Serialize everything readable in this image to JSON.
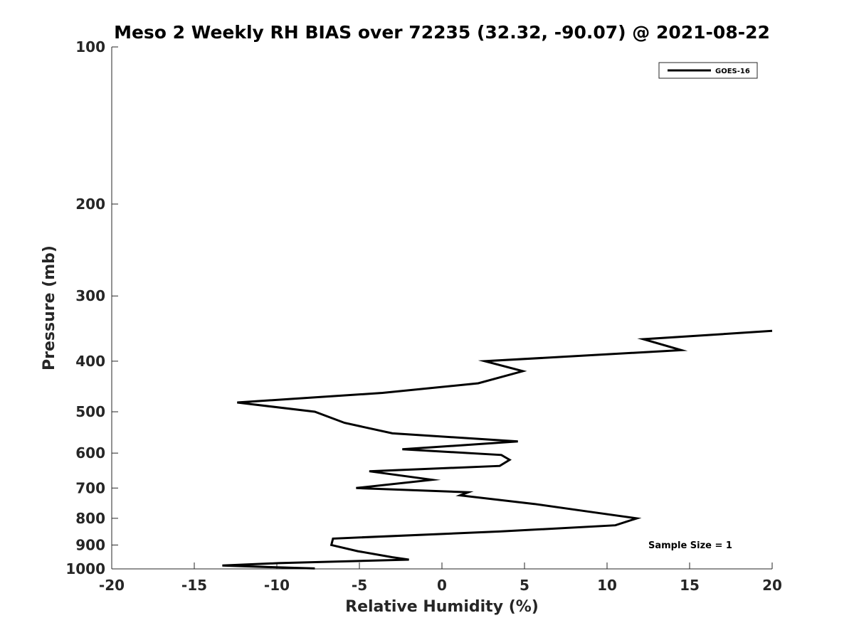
{
  "chart_data": {
    "type": "line",
    "title": "Meso 2 Weekly RH BIAS over 72235 (32.32, -90.07) @ 2021-08-22",
    "xlabel": "Relative Humidity (%)",
    "ylabel": "Pressure (mb)",
    "xlim": [
      -20,
      20
    ],
    "ylim": [
      100,
      1000
    ],
    "y_scale": "log",
    "y_reversed": true,
    "x_ticks": [
      -20,
      -15,
      -10,
      -5,
      0,
      5,
      10,
      15,
      20
    ],
    "y_ticks": [
      100,
      200,
      300,
      400,
      500,
      600,
      700,
      800,
      900,
      1000
    ],
    "grid": false,
    "legend_position": "top-right",
    "series": [
      {
        "name": "GOES-16",
        "color": "#000000",
        "points": [
          {
            "x": 20.0,
            "y": 350
          },
          {
            "x": 12.2,
            "y": 363
          },
          {
            "x": 14.5,
            "y": 381
          },
          {
            "x": 2.6,
            "y": 400
          },
          {
            "x": 4.9,
            "y": 418
          },
          {
            "x": 2.2,
            "y": 441
          },
          {
            "x": -3.6,
            "y": 460
          },
          {
            "x": -8.0,
            "y": 470
          },
          {
            "x": -12.4,
            "y": 480
          },
          {
            "x": -7.7,
            "y": 500
          },
          {
            "x": -5.9,
            "y": 525
          },
          {
            "x": -3.0,
            "y": 550
          },
          {
            "x": 4.6,
            "y": 570
          },
          {
            "x": -2.4,
            "y": 590
          },
          {
            "x": 3.6,
            "y": 605
          },
          {
            "x": 4.1,
            "y": 618
          },
          {
            "x": 3.5,
            "y": 635
          },
          {
            "x": -4.4,
            "y": 650
          },
          {
            "x": -0.6,
            "y": 675
          },
          {
            "x": -5.2,
            "y": 700
          },
          {
            "x": 1.6,
            "y": 713
          },
          {
            "x": 1.1,
            "y": 723
          },
          {
            "x": 5.6,
            "y": 751
          },
          {
            "x": 8.8,
            "y": 776
          },
          {
            "x": 11.8,
            "y": 800
          },
          {
            "x": 10.5,
            "y": 825
          },
          {
            "x": 3.5,
            "y": 848
          },
          {
            "x": -6.6,
            "y": 875
          },
          {
            "x": -6.7,
            "y": 900
          },
          {
            "x": -5.1,
            "y": 925
          },
          {
            "x": -3.0,
            "y": 950
          },
          {
            "x": -2.0,
            "y": 960
          },
          {
            "x": -9.9,
            "y": 975
          },
          {
            "x": -13.3,
            "y": 985
          },
          {
            "x": -10.0,
            "y": 993
          },
          {
            "x": -7.7,
            "y": 998
          }
        ]
      }
    ],
    "annotation": "Sample Size = 1"
  }
}
